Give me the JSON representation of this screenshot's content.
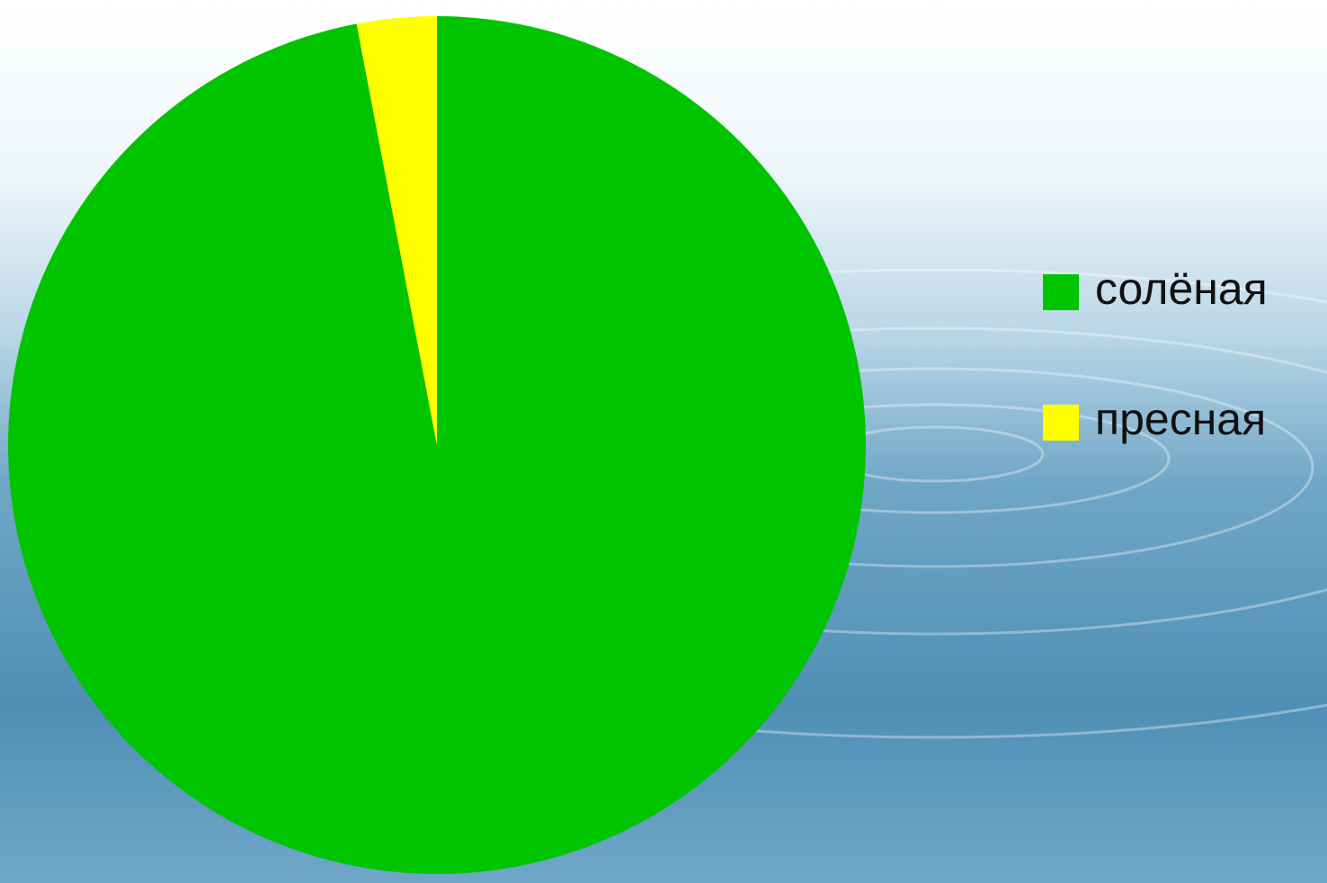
{
  "chart_data": {
    "type": "pie",
    "categories": [
      "солёная",
      "пресная"
    ],
    "values": [
      97,
      3
    ],
    "colors": [
      "#00c400",
      "#ffff00"
    ],
    "start_angle": 0,
    "direction": "clockwise",
    "legend": "right"
  }
}
